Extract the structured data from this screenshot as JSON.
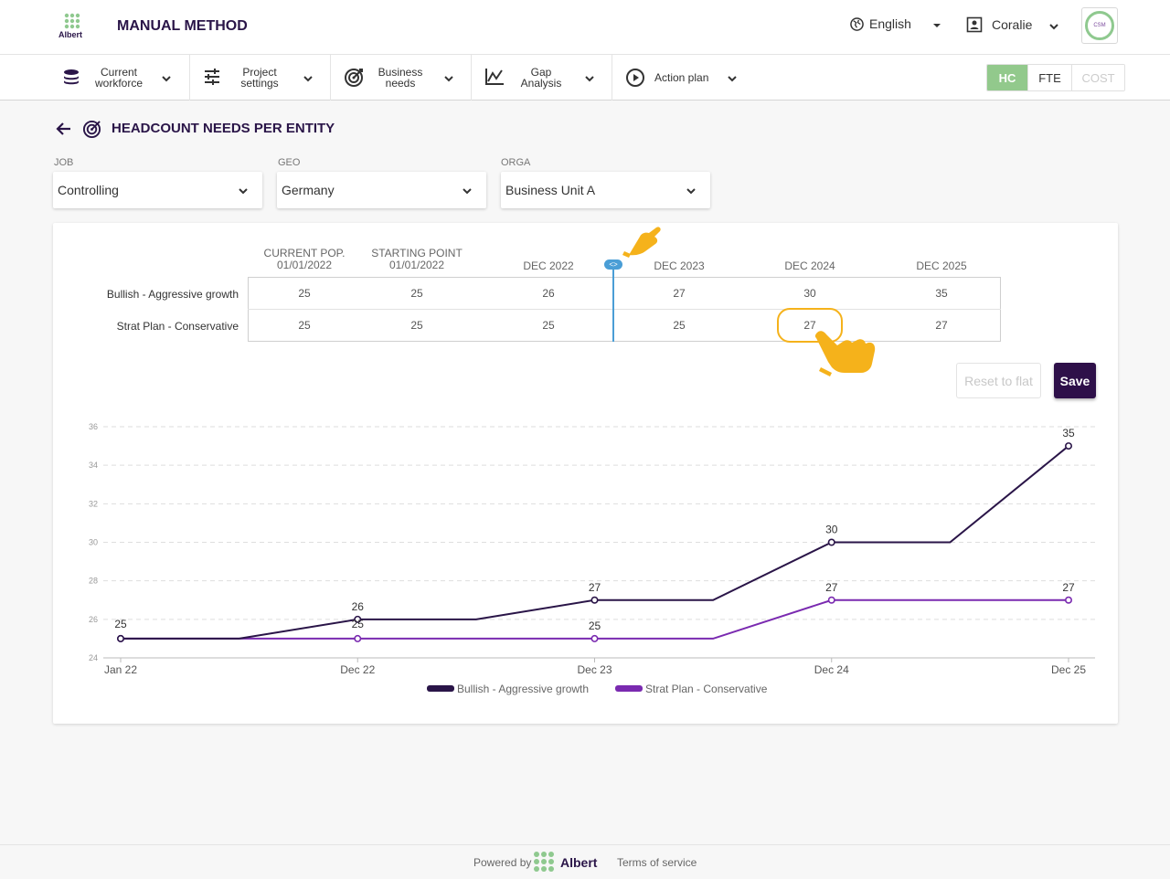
{
  "header": {
    "logo_text": "Albert",
    "app_title": "MANUAL METHOD",
    "language": "English",
    "user": "Coralie",
    "avatar_text": "CSM"
  },
  "nav": {
    "items": [
      {
        "line1": "Current",
        "line2": "workforce",
        "icon": "layers-icon"
      },
      {
        "line1": "Project",
        "line2": "settings",
        "icon": "sliders-icon"
      },
      {
        "line1": "Business",
        "line2": "needs",
        "icon": "target-icon"
      },
      {
        "line1": "Gap",
        "line2": "Analysis",
        "icon": "chart-icon"
      },
      {
        "line1": "Action plan",
        "line2": "",
        "icon": "play-circle-icon"
      }
    ],
    "toggle": {
      "hc": "HC",
      "fte": "FTE",
      "cost": "COST"
    }
  },
  "page": {
    "title": "HEADCOUNT NEEDS PER ENTITY"
  },
  "filters": {
    "job": {
      "label": "JOB",
      "value": "Controlling"
    },
    "geo": {
      "label": "GEO",
      "value": "Germany"
    },
    "orga": {
      "label": "ORGA",
      "value": "Business Unit A"
    }
  },
  "table": {
    "columns": [
      {
        "line1": "CURRENT POP.",
        "line2": "01/01/2022"
      },
      {
        "line1": "STARTING POINT",
        "line2": "01/01/2022"
      },
      {
        "line1": "",
        "line2": "DEC 2022"
      },
      {
        "line1": "",
        "line2": "DEC 2023"
      },
      {
        "line1": "",
        "line2": "DEC 2024"
      },
      {
        "line1": "",
        "line2": "DEC 2025"
      }
    ],
    "rows": [
      {
        "label": "Bullish - Aggressive growth",
        "values": [
          "25",
          "25",
          "26",
          "27",
          "30",
          "35"
        ]
      },
      {
        "label": "Strat Plan - Conservative",
        "values": [
          "25",
          "25",
          "25",
          "25",
          "27",
          "27"
        ]
      }
    ],
    "divider_handle": "<>"
  },
  "buttons": {
    "reset": "Reset to flat",
    "save": "Save"
  },
  "chart_data": {
    "type": "line",
    "x": [
      "2022-01",
      "2022-06",
      "2022-12",
      "2023-06",
      "2023-12",
      "2024-06",
      "2024-12",
      "2025-06",
      "2025-12"
    ],
    "xticks": [
      "Jan 22",
      "Dec 22",
      "Dec 23",
      "Dec 24",
      "Dec 25"
    ],
    "ylim": [
      24,
      36
    ],
    "yticks": [
      "24",
      "26",
      "28",
      "30",
      "32",
      "34",
      "36"
    ],
    "series": [
      {
        "name": "Bullish - Aggressive growth",
        "color": "#2a1548",
        "values": [
          25,
          25,
          26,
          26,
          27,
          27,
          30,
          30,
          35
        ],
        "markers": [
          0,
          2,
          4,
          6,
          8
        ]
      },
      {
        "name": "Strat Plan - Conservative",
        "color": "#7a2ab0",
        "values": [
          25,
          25,
          25,
          25,
          25,
          25,
          27,
          27,
          27
        ],
        "markers": [
          0,
          2,
          4,
          6,
          8
        ]
      }
    ],
    "grid": true,
    "legend": "bottom"
  },
  "footer": {
    "powered_by": "Powered by",
    "brand": "Albert",
    "terms": "Terms of service"
  }
}
